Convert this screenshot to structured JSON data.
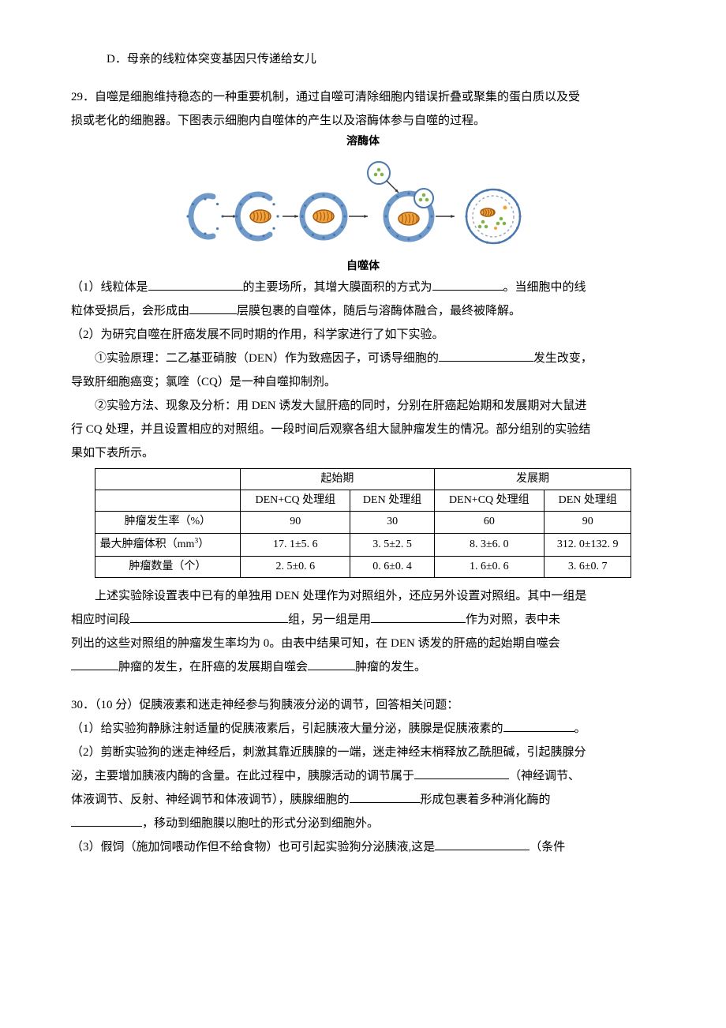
{
  "option_D": "D．母亲的线粒体突变基因只传递给女儿",
  "q29": {
    "stem_line1": "29．自噬是细胞维持稳态的一种重要机制，通过自噬可清除细胞内错误折叠或聚集的蛋白质以及受",
    "stem_line2": "损或老化的细胞器。下图表示细胞内自噬体的产生以及溶酶体参与自噬的过程。",
    "diagram": {
      "top_label": "溶酶体",
      "bottom_label": "自噬体",
      "colors": {
        "membrane": "#6f99c8",
        "membrane_dark": "#4a78ad",
        "mito_outer": "#f2a23b",
        "mito_inner": "#a35a12",
        "enzyme": "#7fb24a",
        "arrow": "#333333",
        "dashed": "#9aa9bf"
      }
    },
    "part1_a": "（1）线粒体是",
    "part1_b": "的主要场所，其增大膜面积的方式为",
    "part1_c": "。当细胞中的线",
    "part1_line2_a": "粒体受损后，会形成由",
    "part1_line2_b": "层膜包裹的自噬体，随后与溶酶体融合，最终被降解。",
    "part2_head": "（2）为研究自噬在肝癌发展不同时期的作用，科学家进行了如下实验。",
    "part2_1a": "①实验原理：二乙基亚硝胺（DEN）作为致癌因子，可诱导细胞的",
    "part2_1b": "发生改变，",
    "part2_1c": "导致肝细胞癌变；氯喹（CQ）是一种自噬抑制剂。",
    "part2_2a": "②实验方法、现象及分析：用 DEN 诱发大鼠肝癌的同时，分别在肝癌起始期和发展期对大鼠进",
    "part2_2b": "行 CQ 处理，并且设置相应的对照组。一段时间后观察各组大鼠肿瘤发生的情况。部分组别的实验结",
    "part2_2c": "果如下表所示。",
    "table": {
      "header_top": [
        "",
        "起始期",
        "发展期"
      ],
      "header_sub": [
        "",
        "DEN+CQ 处理组",
        "DEN 处理组",
        "DEN+CQ 处理组",
        "DEN 处理组"
      ],
      "rows": [
        [
          "肿瘤发生率（%）",
          "90",
          "30",
          "60",
          "90"
        ],
        [
          "最大肿瘤体积（mm³）",
          "17. 1±5. 6",
          "3. 5±2. 5",
          "8. 3±6. 0",
          "312. 0±132. 9"
        ],
        [
          "肿瘤数量（个）",
          "2. 5±0. 6",
          "0. 6±0. 4",
          "1. 6±0. 6",
          "3. 6±0. 7"
        ]
      ]
    },
    "post_a": "上述实验除设置表中已有的单独用 DEN 处理作为对照组外，还应另外设置对照组。其中一组是",
    "post_b1": "相应时间段",
    "post_b2": "组，另一组是用",
    "post_b3": "作为对照，表中未",
    "post_c": "列出的这些对照组的肿瘤发生率均为 0。由表中结果可知，在 DEN 诱发的肝癌的起始期自噬会",
    "post_d1": "",
    "post_d2": "肿瘤的发生，在肝癌的发展期自噬会",
    "post_d3": "肿瘤的发生。"
  },
  "q30": {
    "head": "30．（10 分）促胰液素和迷走神经参与狗胰液分泌的调节，回答相关问题：",
    "p1a": "（1）给实验狗静脉注射适量的促胰液素后，引起胰液大量分泌，胰腺是促胰液素的",
    "p1b": "。",
    "p2a": "（2）剪断实验狗的迷走神经后，刺激其靠近胰腺的一端，迷走神经末梢释放乙酰胆碱，引起胰腺分",
    "p2b": "泌，主要增加胰液内酶的含量。在此过程中，胰腺活动的调节属于",
    "p2c": "（神经调节、",
    "p2d": "体液调节、反射、神经调节和体液调节），胰腺细胞的",
    "p2e": "形成包裹着多种消化酶的",
    "p2f": "，移动到细胞膜以胞吐的形式分泌到细胞外。",
    "p3a": "（3）假饲（施加饲喂动作但不给食物）也可引起实验狗分泌胰液,这是",
    "p3b": "（条件"
  }
}
